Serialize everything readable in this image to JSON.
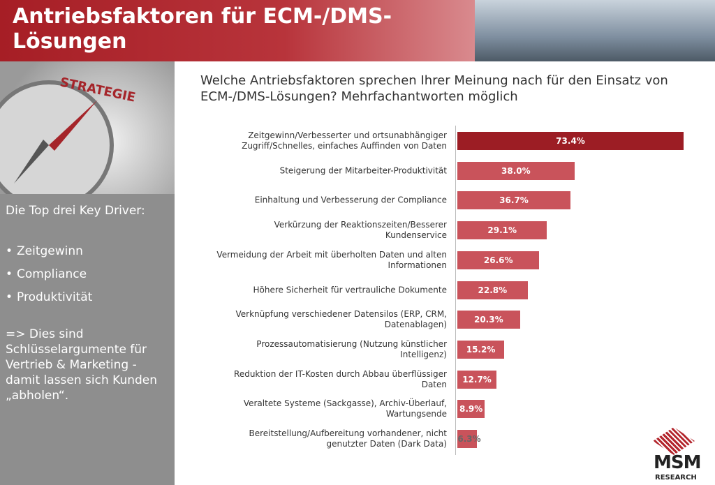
{
  "header": {
    "title": "Antriebsfaktoren für ECM-/DMS-\nLösungen"
  },
  "sidebar": {
    "image_text": "STRATEGIE",
    "heading": "Die Top drei Key Driver:",
    "bullets": [
      "Zeitgewinn",
      "Compliance",
      "Produktivität"
    ],
    "note": "=> Dies sind Schlüsselargumente für Vertrieb & Marketing - damit lassen sich Kunden „abholen“."
  },
  "logo": {
    "name": "MSM",
    "sub": "RESEARCH"
  },
  "chart_data": {
    "type": "hbar",
    "title": "Welche Antriebsfaktoren sprechen Ihrer Meinung nach für den Einsatz von ECM-/DMS-Lösungen? Mehrfachantworten möglich",
    "categories": [
      "Zeitgewinn/Verbesserter und ortsunabhängiger\nZugriff/Schnelles, einfaches Auffinden von Daten",
      "Steigerung der Mitarbeiter-Produktivität",
      "Einhaltung und Verbesserung der Compliance",
      "Verkürzung der Reaktionszeiten/Besserer\nKundenservice",
      "Vermeidung der Arbeit mit überholten Daten und alten\nInformationen",
      "Höhere Sicherheit für vertrauliche Dokumente",
      "Verknüpfung verschiedener Datensilos (ERP, CRM,\nDatenablagen)",
      "Prozessautomatisierung (Nutzung künstlicher\nIntelligenz)",
      "Reduktion der IT-Kosten durch Abbau überflüssiger\nDaten",
      "Veraltete Systeme (Sackgasse), Archiv-Überlauf,\nWartungsende",
      "Bereitstellung/Aufbereitung vorhandener, nicht\ngenutzter Daten (Dark Data)"
    ],
    "values": [
      73.4,
      38.0,
      36.7,
      29.1,
      26.6,
      22.8,
      20.3,
      15.2,
      12.7,
      8.9,
      6.3
    ],
    "value_labels": [
      "73.4%",
      "38.0%",
      "36.7%",
      "29.1%",
      "26.6%",
      "22.8%",
      "20.3%",
      "15.2%",
      "12.7%",
      "8.9%",
      "6.3%"
    ],
    "colors": [
      "#9c1d24",
      "#c9535b",
      "#c9535b",
      "#c9535b",
      "#c9535b",
      "#c9535b",
      "#c9535b",
      "#c9535b",
      "#c9535b",
      "#c9535b",
      "#c9535b"
    ]
  }
}
